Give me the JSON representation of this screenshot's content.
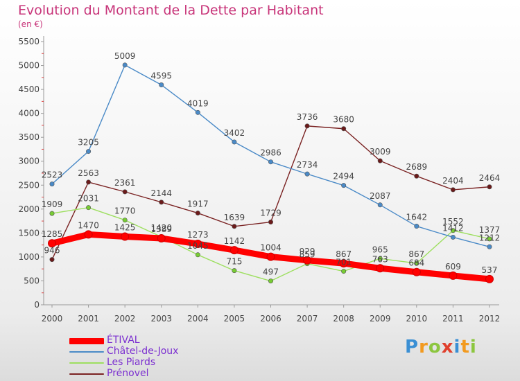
{
  "header": {
    "title": "Evolution du Montant de la Dette par Habitant",
    "subtitle": "(en €)"
  },
  "brand": {
    "letters": [
      "P",
      "r",
      "o",
      "x",
      "i",
      "t",
      "i"
    ],
    "colors": [
      "#3a8fd4",
      "#f29a1f",
      "#8cc63f",
      "#e0402d",
      "#3a8fd4",
      "#f29a1f",
      "#8cc63f"
    ]
  },
  "chart_data": {
    "type": "line",
    "title": "Evolution du Montant de la Dette par Habitant",
    "subtitle": "(en €)",
    "xlabel": "",
    "ylabel": "",
    "ylim": [
      0,
      5500
    ],
    "yticks": [
      0,
      500,
      1000,
      1500,
      2000,
      2500,
      3000,
      3500,
      4000,
      4500,
      5000,
      5500
    ],
    "grid": false,
    "legend_position": "bottom-left",
    "x": [
      "2000",
      "2001",
      "2002",
      "2003",
      "2004",
      "2005",
      "2006",
      "2007",
      "2008",
      "2009",
      "2010",
      "2011",
      "2012"
    ],
    "series": [
      {
        "name": "ÉTIVAL",
        "color": "#ff0000",
        "marker": "#ff0000",
        "values": [
          1285,
          1470,
          1425,
          1389,
          1273,
          1142,
          1004,
          929,
          867,
          763,
          684,
          609,
          537
        ]
      },
      {
        "name": "Châtel-de-Joux",
        "color": "#4a8ac7",
        "marker": "#4a8ac7",
        "values": [
          2523,
          3205,
          5009,
          4595,
          4019,
          3402,
          2986,
          2734,
          2494,
          2087,
          1642,
          1412,
          1212
        ]
      },
      {
        "name": "Les Piards",
        "color": "#9ddf5f",
        "marker": "#77cc33",
        "values": [
          1909,
          2031,
          1770,
          1420,
          1045,
          715,
          497,
          859,
          701,
          965,
          867,
          1552,
          1377
        ]
      },
      {
        "name": "Prénovel",
        "color": "#7a2222",
        "marker": "#6b1a1a",
        "values": [
          946,
          2563,
          2361,
          2144,
          1917,
          1639,
          1729,
          3736,
          3680,
          3009,
          2689,
          2404,
          2464
        ]
      }
    ]
  }
}
